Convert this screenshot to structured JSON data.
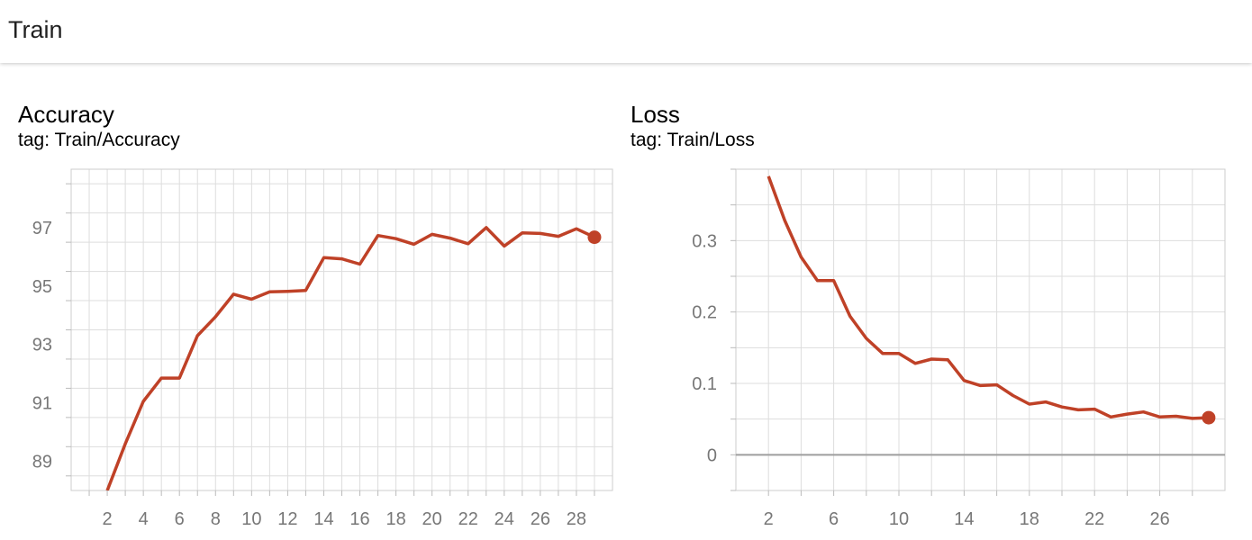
{
  "header": {
    "title": "Train"
  },
  "charts": [
    {
      "title": "Accuracy",
      "tag": "tag: Train/Accuracy"
    },
    {
      "title": "Loss",
      "tag": "tag: Train/Loss"
    }
  ],
  "colors": {
    "line": "#bf4127",
    "grid": "#dddddd",
    "zero_line": "#9e9e9e",
    "tick_text": "#777777"
  },
  "chart_data": [
    {
      "type": "line",
      "title": "Accuracy",
      "tag": "tag: Train/Accuracy",
      "x_ticks": [
        2,
        4,
        6,
        8,
        10,
        12,
        14,
        16,
        18,
        20,
        22,
        24,
        26,
        28
      ],
      "y_ticks": [
        89,
        91,
        93,
        95,
        97
      ],
      "xlim": [
        0,
        30
      ],
      "ylim": [
        88,
        99
      ],
      "series": [
        {
          "x": [
            2,
            3,
            4,
            5,
            6,
            7,
            8,
            9,
            10,
            11,
            12,
            13,
            14,
            15,
            16,
            17,
            18,
            19,
            20,
            21,
            22,
            23,
            24,
            25,
            26,
            27,
            28,
            29
          ],
          "y": [
            88.0,
            89.6,
            91.05,
            91.85,
            91.85,
            93.3,
            93.95,
            94.72,
            94.55,
            94.8,
            94.82,
            94.85,
            95.97,
            95.93,
            95.75,
            96.73,
            96.62,
            96.43,
            96.77,
            96.64,
            96.45,
            97.0,
            96.37,
            96.82,
            96.8,
            96.7,
            96.96,
            96.67
          ]
        }
      ],
      "grid": true
    },
    {
      "type": "line",
      "title": "Loss",
      "tag": "tag: Train/Loss",
      "x_ticks": [
        2,
        6,
        10,
        14,
        18,
        22,
        26
      ],
      "y_ticks": [
        0,
        0.1,
        0.2,
        0.3
      ],
      "y_tick_labels": [
        "0",
        "0.1",
        "0.2",
        "0.3"
      ],
      "xlim": [
        0,
        30
      ],
      "ylim": [
        -0.05,
        0.4
      ],
      "series": [
        {
          "x": [
            2,
            3,
            4,
            5,
            6,
            7,
            8,
            9,
            10,
            11,
            12,
            13,
            14,
            15,
            16,
            17,
            18,
            19,
            20,
            21,
            22,
            23,
            24,
            25,
            26,
            27,
            28,
            29
          ],
          "y": [
            0.39,
            0.328,
            0.277,
            0.244,
            0.244,
            0.194,
            0.163,
            0.142,
            0.142,
            0.128,
            0.134,
            0.133,
            0.104,
            0.097,
            0.098,
            0.083,
            0.071,
            0.074,
            0.067,
            0.063,
            0.064,
            0.053,
            0.057,
            0.06,
            0.053,
            0.054,
            0.051,
            0.052
          ]
        }
      ],
      "grid": true
    }
  ]
}
